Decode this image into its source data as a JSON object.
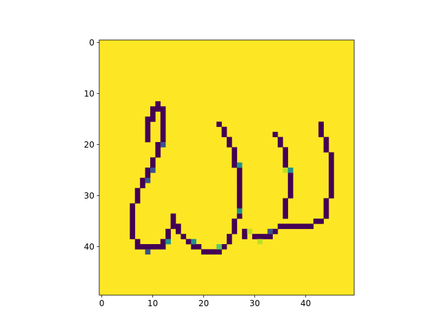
{
  "chart_data": {
    "type": "heatmap",
    "title": "",
    "xlabel": "",
    "ylabel": "",
    "grid": false,
    "colormap": "viridis",
    "size": [
      50,
      50
    ],
    "xlim": [
      -0.5,
      49.5
    ],
    "ylim": [
      49.5,
      -0.5
    ],
    "xticks": [
      0,
      10,
      20,
      30,
      40
    ],
    "yticks": [
      0,
      10,
      20,
      30,
      40
    ],
    "xtick_labels": [
      "0",
      "10",
      "20",
      "30",
      "40"
    ],
    "ytick_labels": [
      "0",
      "10",
      "20",
      "30",
      "40"
    ],
    "background_value": 1.0,
    "stroke_value": 0.0,
    "colors": {
      "background": "#fde725",
      "stroke": "#440154",
      "edge_teal": "#21918c",
      "edge_blue": "#3b528b",
      "edge_green": "#5ec962",
      "edge_yellowgreen": "#bddf26"
    },
    "stroke_segments": [
      [
        12,
        11,
        11
      ],
      [
        13,
        10,
        12
      ],
      [
        14,
        10,
        10
      ],
      [
        14,
        12,
        12
      ],
      [
        15,
        9,
        9
      ],
      [
        15,
        10,
        10
      ],
      [
        15,
        12,
        12
      ],
      [
        16,
        9,
        9
      ],
      [
        16,
        12,
        12
      ],
      [
        16,
        23,
        23
      ],
      [
        16,
        43,
        43
      ],
      [
        17,
        9,
        9
      ],
      [
        17,
        12,
        12
      ],
      [
        17,
        24,
        24
      ],
      [
        17,
        43,
        43
      ],
      [
        18,
        9,
        9
      ],
      [
        18,
        12,
        12
      ],
      [
        18,
        24,
        24
      ],
      [
        18,
        34,
        34
      ],
      [
        18,
        43,
        43
      ],
      [
        19,
        9,
        9
      ],
      [
        19,
        12,
        12
      ],
      [
        19,
        25,
        25
      ],
      [
        19,
        35,
        35
      ],
      [
        19,
        44,
        44
      ],
      [
        20,
        11,
        11
      ],
      [
        20,
        25,
        25
      ],
      [
        20,
        35,
        35
      ],
      [
        20,
        44,
        44
      ],
      [
        21,
        11,
        11
      ],
      [
        21,
        26,
        26
      ],
      [
        21,
        36,
        36
      ],
      [
        21,
        44,
        44
      ],
      [
        22,
        11,
        11
      ],
      [
        22,
        26,
        26
      ],
      [
        22,
        36,
        36
      ],
      [
        22,
        45,
        45
      ],
      [
        23,
        10,
        10
      ],
      [
        23,
        26,
        26
      ],
      [
        23,
        36,
        36
      ],
      [
        23,
        45,
        45
      ],
      [
        24,
        10,
        10
      ],
      [
        24,
        26,
        26
      ],
      [
        24,
        36,
        36
      ],
      [
        24,
        45,
        45
      ],
      [
        25,
        9,
        9
      ],
      [
        25,
        27,
        27
      ],
      [
        25,
        45,
        45
      ],
      [
        26,
        9,
        9
      ],
      [
        26,
        27,
        27
      ],
      [
        26,
        37,
        37
      ],
      [
        26,
        45,
        45
      ],
      [
        27,
        8,
        8
      ],
      [
        27,
        27,
        27
      ],
      [
        27,
        37,
        37
      ],
      [
        27,
        45,
        45
      ],
      [
        28,
        8,
        8
      ],
      [
        28,
        27,
        27
      ],
      [
        28,
        37,
        37
      ],
      [
        28,
        45,
        45
      ],
      [
        29,
        7,
        7
      ],
      [
        29,
        27,
        27
      ],
      [
        29,
        37,
        37
      ],
      [
        29,
        45,
        45
      ],
      [
        30,
        7,
        7
      ],
      [
        30,
        27,
        27
      ],
      [
        30,
        37,
        37
      ],
      [
        30,
        45,
        45
      ],
      [
        31,
        7,
        7
      ],
      [
        31,
        27,
        27
      ],
      [
        31,
        36,
        36
      ],
      [
        31,
        44,
        44
      ],
      [
        32,
        6,
        6
      ],
      [
        32,
        27,
        27
      ],
      [
        32,
        36,
        36
      ],
      [
        32,
        44,
        44
      ],
      [
        33,
        6,
        6
      ],
      [
        33,
        36,
        36
      ],
      [
        33,
        44,
        44
      ],
      [
        34,
        6,
        6
      ],
      [
        34,
        14,
        14
      ],
      [
        34,
        27,
        27
      ],
      [
        34,
        36,
        36
      ],
      [
        34,
        44,
        44
      ],
      [
        35,
        6,
        6
      ],
      [
        35,
        14,
        14
      ],
      [
        35,
        26,
        26
      ],
      [
        35,
        42,
        43
      ],
      [
        36,
        6,
        6
      ],
      [
        36,
        14,
        15
      ],
      [
        36,
        26,
        26
      ],
      [
        36,
        35,
        41
      ],
      [
        37,
        6,
        6
      ],
      [
        37,
        13,
        13
      ],
      [
        37,
        15,
        15
      ],
      [
        37,
        26,
        26
      ],
      [
        37,
        28,
        28
      ],
      [
        37,
        34,
        34
      ],
      [
        38,
        6,
        6
      ],
      [
        38,
        13,
        13
      ],
      [
        38,
        16,
        16
      ],
      [
        38,
        25,
        25
      ],
      [
        38,
        28,
        28
      ],
      [
        38,
        30,
        33
      ],
      [
        39,
        7,
        7
      ],
      [
        39,
        12,
        12
      ],
      [
        39,
        17,
        17
      ],
      [
        39,
        25,
        25
      ],
      [
        40,
        7,
        12
      ],
      [
        40,
        18,
        19
      ],
      [
        40,
        24,
        24
      ],
      [
        41,
        20,
        23
      ]
    ],
    "edge_cells": [
      [
        20,
        12,
        "edge_blue"
      ],
      [
        24,
        27,
        "edge_teal"
      ],
      [
        25,
        10,
        "edge_blue"
      ],
      [
        25,
        36,
        "edge_yellowgreen"
      ],
      [
        25,
        37,
        "edge_teal"
      ],
      [
        27,
        9,
        "edge_blue"
      ],
      [
        33,
        27,
        "edge_teal"
      ],
      [
        37,
        29,
        "edge_yellowgreen"
      ],
      [
        37,
        33,
        "edge_blue"
      ],
      [
        39,
        13,
        "edge_teal"
      ],
      [
        39,
        18,
        "edge_teal"
      ],
      [
        39,
        31,
        "edge_yellowgreen"
      ],
      [
        40,
        23,
        "edge_green"
      ],
      [
        41,
        9,
        "edge_blue"
      ]
    ]
  }
}
